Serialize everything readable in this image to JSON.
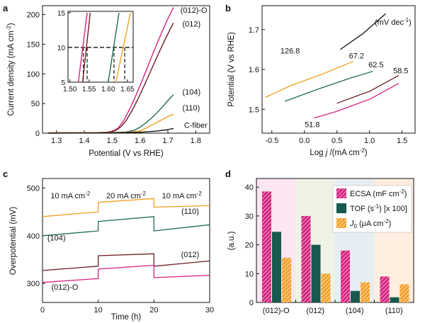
{
  "chart_data": [
    {
      "panel": "a",
      "type": "line",
      "xlabel": "Potential (V vs RHE)",
      "ylabel_parts": [
        "Current density (mA cm",
        "-2",
        ")"
      ],
      "xlim": [
        1.25,
        1.85
      ],
      "ylim": [
        0,
        215
      ],
      "xticks": [
        1.3,
        1.4,
        1.5,
        1.6,
        1.7,
        1.8
      ],
      "yticks": [
        0,
        50,
        100,
        150,
        200
      ],
      "series": [
        {
          "name": "(012)-O",
          "color": "#d6237f",
          "points": [
            [
              1.27,
              0.5
            ],
            [
              1.45,
              1
            ],
            [
              1.48,
              1.5
            ],
            [
              1.5,
              3
            ],
            [
              1.52,
              8
            ],
            [
              1.54,
              20
            ],
            [
              1.56,
              38
            ],
            [
              1.58,
              58
            ],
            [
              1.6,
              80
            ],
            [
              1.62,
              103
            ],
            [
              1.64,
              127
            ],
            [
              1.66,
              150
            ],
            [
              1.68,
              172
            ],
            [
              1.7,
              193
            ],
            [
              1.72,
              212
            ]
          ]
        },
        {
          "name": "(012)",
          "color": "#6b1d24",
          "points": [
            [
              1.27,
              0.5
            ],
            [
              1.45,
              1
            ],
            [
              1.49,
              1.5
            ],
            [
              1.51,
              4
            ],
            [
              1.53,
              10
            ],
            [
              1.55,
              21
            ],
            [
              1.57,
              37
            ],
            [
              1.59,
              55
            ],
            [
              1.61,
              75
            ],
            [
              1.63,
              96
            ],
            [
              1.65,
              117
            ],
            [
              1.67,
              138
            ],
            [
              1.69,
              158
            ],
            [
              1.71,
              177
            ],
            [
              1.72,
              186
            ]
          ]
        },
        {
          "name": "(104)",
          "color": "#1f6b5d",
          "points": [
            [
              1.27,
              0.5
            ],
            [
              1.5,
              1
            ],
            [
              1.55,
              2
            ],
            [
              1.58,
              5
            ],
            [
              1.6,
              10
            ],
            [
              1.62,
              17
            ],
            [
              1.64,
              25
            ],
            [
              1.66,
              34
            ],
            [
              1.68,
              44
            ],
            [
              1.7,
              55
            ],
            [
              1.72,
              65
            ]
          ]
        },
        {
          "name": "(110)",
          "color": "#f0a020",
          "points": [
            [
              1.27,
              0.5
            ],
            [
              1.52,
              1
            ],
            [
              1.57,
              2
            ],
            [
              1.6,
              4
            ],
            [
              1.62,
              8
            ],
            [
              1.64,
              13
            ],
            [
              1.66,
              18
            ],
            [
              1.68,
              23
            ],
            [
              1.7,
              28
            ],
            [
              1.72,
              32
            ]
          ]
        },
        {
          "name": "C-fiber",
          "color": "#111111",
          "points": [
            [
              1.27,
              0
            ],
            [
              1.5,
              0.5
            ],
            [
              1.6,
              1.5
            ],
            [
              1.66,
              3.5
            ],
            [
              1.7,
              6
            ],
            [
              1.72,
              8
            ]
          ]
        }
      ],
      "inset": {
        "xlim": [
          1.495,
          1.665
        ],
        "ylim": [
          5,
          15.2
        ],
        "xticks": [
          1.5,
          1.55,
          1.6,
          1.65
        ],
        "yticks": [
          5,
          10,
          15
        ],
        "reference_y": 10,
        "series": [
          {
            "name": "(012)-O",
            "color": "#d6237f",
            "points": [
              [
                1.522,
                5
              ],
              [
                1.545,
                15
              ]
            ],
            "dashed_x": 1.535
          },
          {
            "name": "(012)",
            "color": "#6b1d24",
            "points": [
              [
                1.533,
                5
              ],
              [
                1.553,
                15
              ]
            ],
            "dashed_x": 1.545
          },
          {
            "name": "(104)",
            "color": "#1f6b5d",
            "points": [
              [
                1.6,
                5
              ],
              [
                1.628,
                15
              ]
            ],
            "dashed_x": 1.615
          },
          {
            "name": "(110)",
            "color": "#f0a020",
            "points": [
              [
                1.62,
                5
              ],
              [
                1.658,
                15
              ]
            ],
            "dashed_x": 1.643
          }
        ]
      }
    },
    {
      "panel": "b",
      "type": "line",
      "xlabel_parts": [
        "Log ",
        "j",
        " /(mA cm",
        "-2",
        ")"
      ],
      "ylabel": "Potential (V vs RHE)",
      "xlim": [
        -0.65,
        1.7
      ],
      "ylim": [
        1.44,
        1.76
      ],
      "xticks": [
        -0.5,
        0.0,
        0.5,
        1.0,
        1.5
      ],
      "yticks": [
        1.5,
        1.6,
        1.7
      ],
      "unit_parts": [
        "(mV dec",
        "-1",
        ")"
      ],
      "series": [
        {
          "name": "(012)-O",
          "color": "#d6237f",
          "tafel_slope": "51.8",
          "points": [
            [
              0.15,
              1.478
            ],
            [
              0.5,
              1.495
            ],
            [
              1.0,
              1.525
            ],
            [
              1.45,
              1.565
            ]
          ]
        },
        {
          "name": "(012)",
          "color": "#6b1d24",
          "tafel_slope": "58.5",
          "points": [
            [
              0.5,
              1.515
            ],
            [
              1.0,
              1.545
            ],
            [
              1.45,
              1.585
            ]
          ]
        },
        {
          "name": "(104)",
          "color": "#1f6b5d",
          "tafel_slope": "62.5",
          "points": [
            [
              -0.3,
              1.52
            ],
            [
              0.2,
              1.55
            ],
            [
              0.7,
              1.578
            ],
            [
              1.05,
              1.595
            ]
          ]
        },
        {
          "name": "(110)",
          "color": "#f0a020",
          "tafel_slope": "67.2",
          "points": [
            [
              -0.6,
              1.53
            ],
            [
              -0.2,
              1.56
            ],
            [
              0.3,
              1.59
            ],
            [
              0.75,
              1.62
            ]
          ]
        },
        {
          "name": "C-fiber",
          "color": "#111111",
          "tafel_slope": "126.8",
          "points": [
            [
              0.55,
              1.65
            ],
            [
              0.9,
              1.69
            ],
            [
              1.25,
              1.74
            ]
          ]
        }
      ]
    },
    {
      "panel": "c",
      "type": "line",
      "xlabel": "Time (h)",
      "ylabel": "Overpotential (mV)",
      "xlim": [
        0,
        30
      ],
      "ylim": [
        260,
        520
      ],
      "xticks": [
        0,
        10,
        20,
        30
      ],
      "yticks": [
        300,
        400,
        500
      ],
      "current_steps": [
        {
          "text": "10 mA cm",
          "sup": "-2",
          "x": 5
        },
        {
          "text": "20 mA cm",
          "sup": "-2",
          "x": 15
        },
        {
          "text": "10 mA cm",
          "sup": "-2",
          "x": 25
        }
      ],
      "series": [
        {
          "name": "(110)",
          "color": "#f0a020",
          "segments": [
            [
              [
                0,
                440
              ],
              [
                10,
                450
              ]
            ],
            [
              [
                10,
                470
              ],
              [
                20,
                478
              ]
            ],
            [
              [
                20,
                460
              ],
              [
                30,
                463
              ]
            ]
          ]
        },
        {
          "name": "(104)",
          "color": "#1f6b5d",
          "segments": [
            [
              [
                0,
                400
              ],
              [
                10,
                410
              ]
            ],
            [
              [
                10,
                430
              ],
              [
                20,
                440
              ]
            ],
            [
              [
                20,
                410
              ],
              [
                30,
                423
              ]
            ]
          ]
        },
        {
          "name": "(012)",
          "color": "#6b1d24",
          "segments": [
            [
              [
                0,
                327
              ],
              [
                10,
                336
              ]
            ],
            [
              [
                10,
                358
              ],
              [
                20,
                362
              ]
            ],
            [
              [
                20,
                336
              ],
              [
                30,
                347
              ]
            ]
          ]
        },
        {
          "name": "(012)-O",
          "color": "#d6237f",
          "segments": [
            [
              [
                0,
                302
              ],
              [
                10,
                310
              ]
            ],
            [
              [
                10,
                330
              ],
              [
                20,
                338
              ]
            ],
            [
              [
                20,
                312
              ],
              [
                30,
                317
              ]
            ]
          ]
        }
      ]
    },
    {
      "panel": "d",
      "type": "bar",
      "ylabel": "(a.u.)",
      "ylim": [
        0,
        43
      ],
      "yticks": [
        0,
        10,
        20,
        30,
        40
      ],
      "categories": [
        "(012)-O",
        "(012)",
        "(104)",
        "(110)"
      ],
      "background_colors": [
        "#fbe6f1",
        "#eef3e6",
        "#e7eef3",
        "#fdeedf"
      ],
      "series": [
        {
          "name_parts": [
            "ECSA (mF cm",
            "-2",
            ")"
          ],
          "color": "#d6237f",
          "pattern": "hatch",
          "values": [
            38.5,
            30,
            18,
            9
          ]
        },
        {
          "name_parts": [
            "TOF (s",
            "-1",
            ") [x 100]"
          ],
          "color": "#17594f",
          "pattern": "solid",
          "values": [
            24.5,
            20,
            4,
            1.8
          ]
        },
        {
          "name_parts": [
            "J",
            "0",
            " (μA cm",
            "-2",
            ")"
          ],
          "color": "#f3a12b",
          "pattern": "hatch",
          "values": [
            15.5,
            10,
            7,
            6.3
          ]
        }
      ]
    }
  ]
}
